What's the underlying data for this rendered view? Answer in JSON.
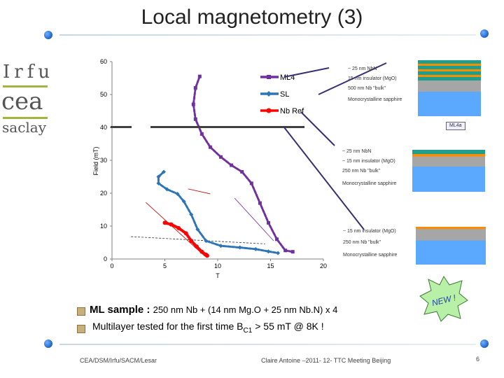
{
  "slide": {
    "title": "Local magnetometry (3)",
    "page_number": "6"
  },
  "logo": {
    "line1": "Irfu",
    "line2": "cea",
    "line3": "saclay"
  },
  "bullets": [
    {
      "prefix": "ML sample : ",
      "text": "250 nm  Nb + (14 nm Mg.O + 25 nm Nb.N) x 4"
    },
    {
      "text_before": "Multilayer tested for the first time B",
      "subscript": "C1",
      "text_after": " > 55 mT  @ 8K !"
    }
  ],
  "new_badge": "NEW !",
  "footer": {
    "left": "CEA/DSM/Irfu/SACM/Lesar",
    "center": "Claire Antoine –2011- 12- TTC Meeting Beijing"
  },
  "sample_boxes": [
    {
      "title": "ML4a",
      "lines": [
        "~ 25 nm NbN",
        "15 nm insulator (MgO)",
        "500 nm Nb \"bulk\"",
        "Monocrystalline sapphire"
      ]
    },
    {
      "lines": [
        "~ 25 nm NbN",
        "~ 15 nm insulator (MgO)",
        "250 nm Nb \"bulk\"",
        "Monocrystalline sapphire"
      ]
    },
    {
      "lines": [
        "~ 15 nm insulator (MgO)",
        "250 nm Nb \"bulk\"",
        "Monocrystalline sapphire"
      ]
    }
  ],
  "colors": {
    "ml4": "#7030a0",
    "sl": "#2e75b6",
    "nbref": "#ff0000",
    "accent_blue": "#1f62c8",
    "logo_green": "#a4b53f"
  },
  "chart_data": {
    "type": "line",
    "title": "",
    "xlabel": "T",
    "ylabel": "Field (mT)",
    "xlim": [
      0,
      20
    ],
    "ylim": [
      0,
      60
    ],
    "xticks": [
      0,
      5,
      10,
      15,
      20
    ],
    "yticks": [
      0,
      10,
      20,
      30,
      40,
      50,
      60
    ],
    "grid": false,
    "legend_position": "top-right",
    "series": [
      {
        "name": "ML4",
        "color": "#7030a0",
        "points": [
          [
            8.3,
            55.5
          ],
          [
            7.9,
            52
          ],
          [
            7.7,
            47
          ],
          [
            7.9,
            42.5
          ],
          [
            8.5,
            38
          ],
          [
            9.3,
            34
          ],
          [
            10.3,
            31
          ],
          [
            11.3,
            28.5
          ],
          [
            12.3,
            26.5
          ],
          [
            13.2,
            23
          ],
          [
            14.0,
            17
          ],
          [
            14.8,
            11
          ],
          [
            15.6,
            6
          ],
          [
            16.4,
            2.6
          ],
          [
            17.1,
            2.2
          ]
        ]
      },
      {
        "name": "SL",
        "color": "#2e75b6",
        "points": [
          [
            4.9,
            26.5
          ],
          [
            4.4,
            25
          ],
          [
            4.4,
            23
          ],
          [
            5.2,
            21.2
          ],
          [
            6.2,
            19.8
          ],
          [
            6.8,
            17.5
          ],
          [
            7.5,
            13.5
          ],
          [
            8.1,
            9
          ],
          [
            8.9,
            5.5
          ],
          [
            10.3,
            4
          ],
          [
            12.1,
            3.5
          ],
          [
            13.6,
            3
          ],
          [
            14.8,
            2.3
          ],
          [
            15.7,
            1.8
          ]
        ]
      },
      {
        "name": "Nb Ref",
        "color": "#ff0000",
        "points": [
          [
            5.0,
            11
          ],
          [
            5.6,
            10.5
          ],
          [
            6.3,
            9.4
          ],
          [
            7.0,
            7.8
          ],
          [
            7.5,
            5.5
          ],
          [
            8.0,
            3.8
          ],
          [
            8.5,
            2.2
          ],
          [
            8.9,
            1.3
          ],
          [
            9.0,
            1.0
          ]
        ]
      }
    ],
    "fit_lines": [
      {
        "color": "#c00000",
        "points": [
          [
            3.2,
            17.2
          ],
          [
            8.8,
            0.8
          ]
        ]
      },
      {
        "color": "#333333",
        "points": [
          [
            1.8,
            6.8
          ],
          [
            14.5,
            4.6
          ]
        ]
      },
      {
        "color": "#c00000",
        "points": [
          [
            7.2,
            21.3
          ],
          [
            9.3,
            19.8
          ]
        ]
      },
      {
        "color": "#7030a0",
        "points": [
          [
            11.6,
            18.5
          ],
          [
            15.3,
            5.5
          ]
        ]
      }
    ]
  }
}
